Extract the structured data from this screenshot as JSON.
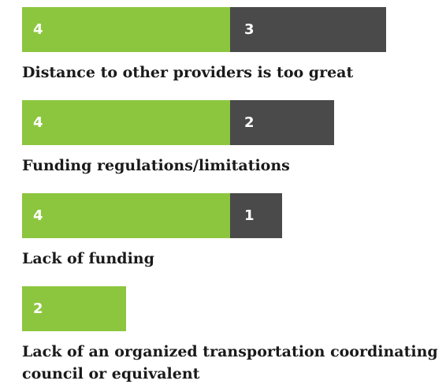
{
  "chart_data": {
    "type": "bar",
    "orientation": "horizontal",
    "stacked": true,
    "categories": [
      "Distance to other providers is too great",
      "Funding regulations/limitations",
      "Lack of funding",
      "Lack of an organized transportation coordinating council or equivalent"
    ],
    "series": [
      {
        "color": "#8cc63f",
        "values": [
          4,
          4,
          4,
          2
        ]
      },
      {
        "color": "#4a4a4a",
        "values": [
          3,
          2,
          1,
          null
        ]
      }
    ]
  }
}
